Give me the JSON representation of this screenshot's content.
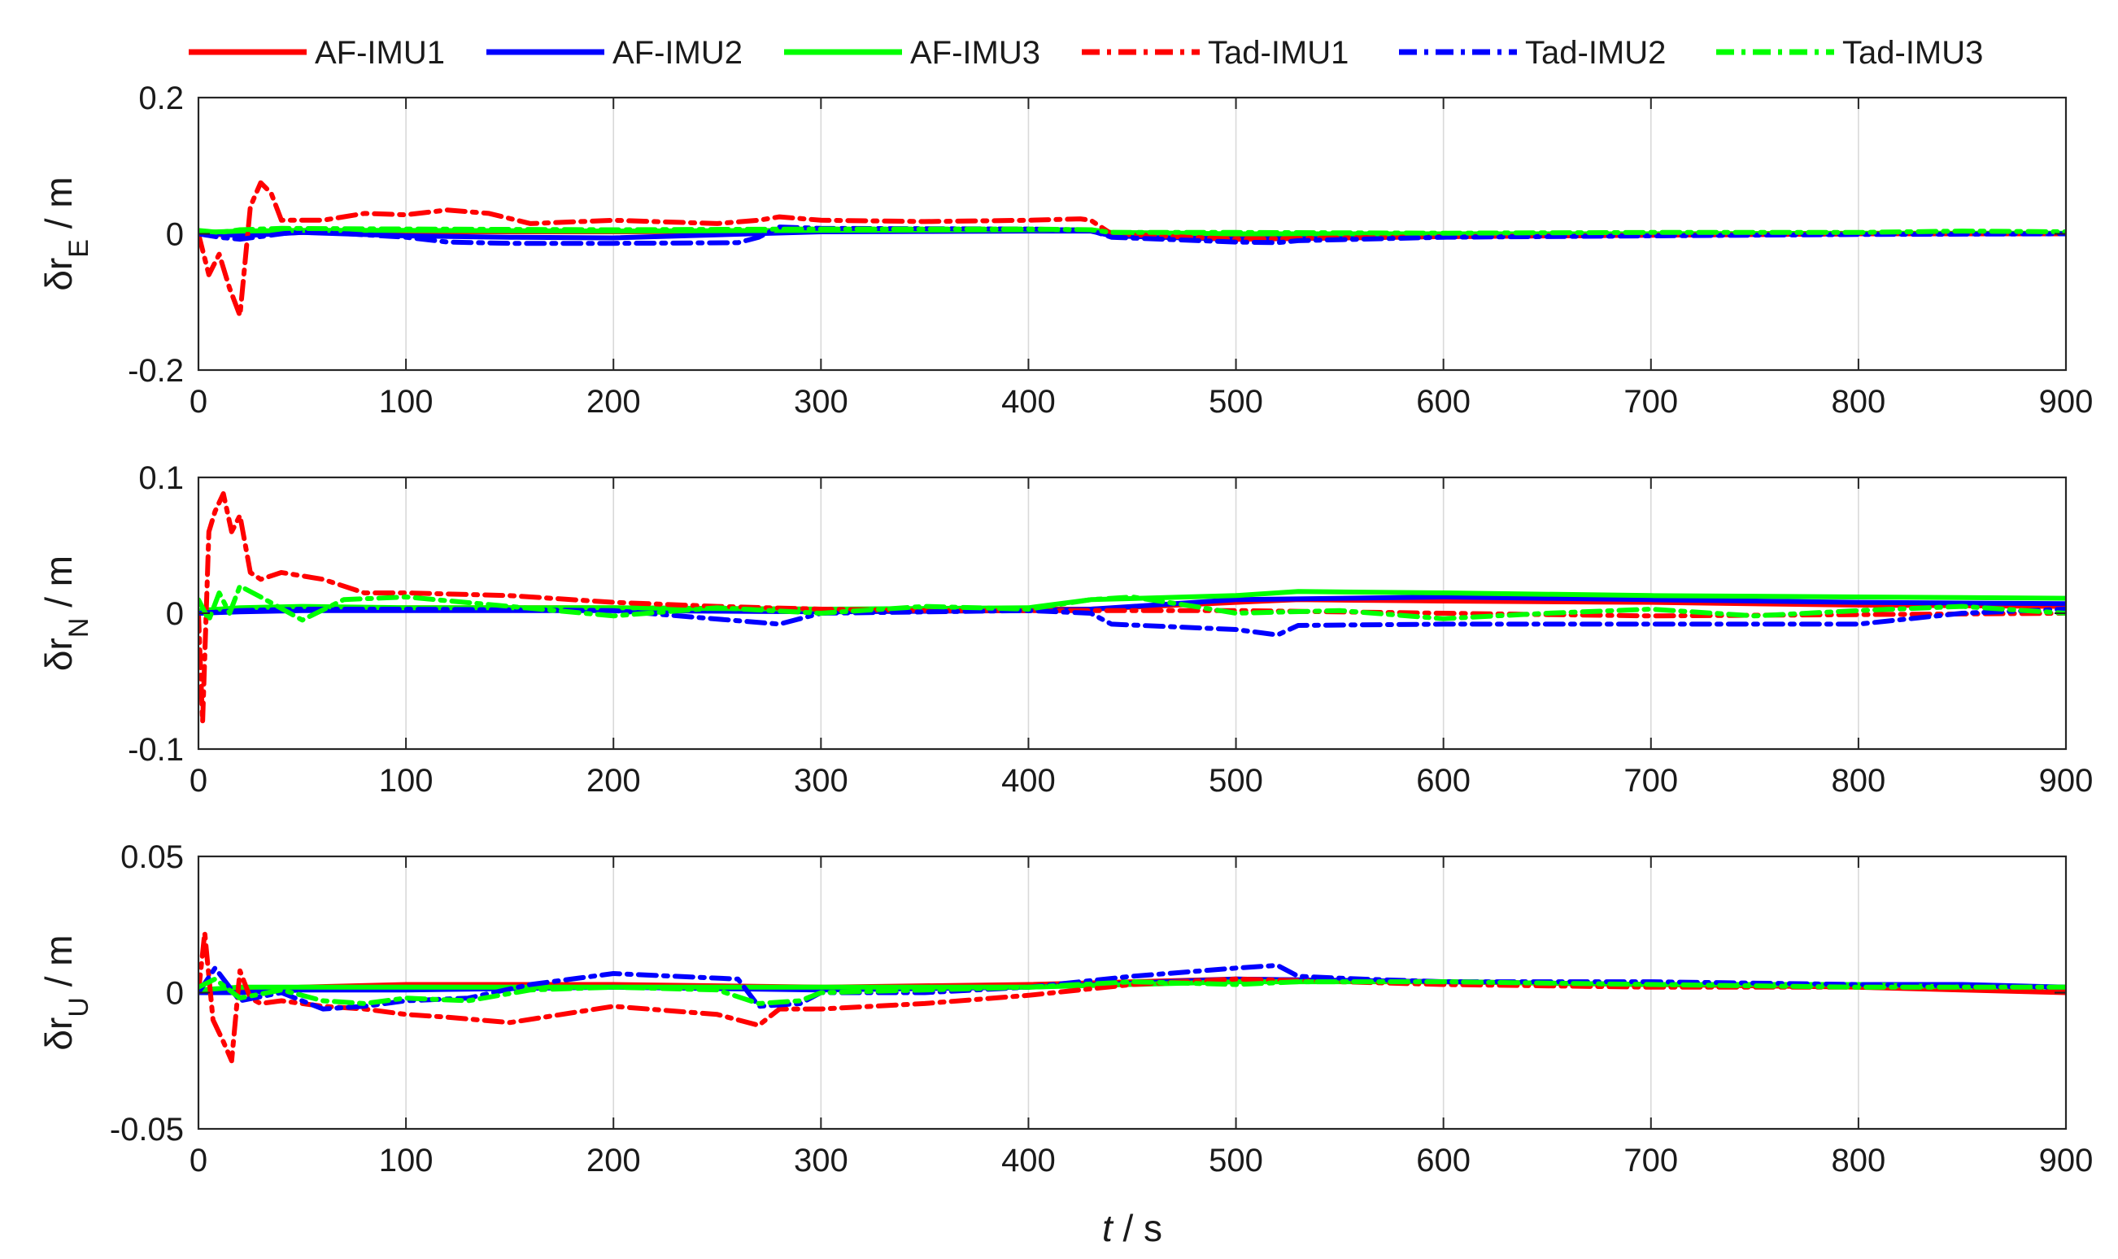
{
  "chart_data": {
    "type": "line",
    "legend": {
      "placement": "top",
      "entries": [
        {
          "label": "AF-IMU1",
          "color": "#ff0000",
          "dash": "solid"
        },
        {
          "label": "AF-IMU2",
          "color": "#0000ff",
          "dash": "solid"
        },
        {
          "label": "AF-IMU3",
          "color": "#00ff00",
          "dash": "solid"
        },
        {
          "label": "Tad-IMU1",
          "color": "#ff0000",
          "dash": "dashdot"
        },
        {
          "label": "Tad-IMU2",
          "color": "#0000ff",
          "dash": "dashdot"
        },
        {
          "label": "Tad-IMU3",
          "color": "#00ff00",
          "dash": "dashdot"
        }
      ]
    },
    "xlabel_var": "t",
    "xlabel_unit": "/ s",
    "xlim": [
      0,
      900
    ],
    "xticks": [
      "0",
      "100",
      "200",
      "300",
      "400",
      "500",
      "600",
      "700",
      "800",
      "900"
    ],
    "xtick_values": [
      0,
      100,
      200,
      300,
      400,
      500,
      600,
      700,
      800,
      900
    ],
    "grid": "vertical",
    "subplots": [
      {
        "ylabel_main": "δr",
        "ylabel_sub": "E",
        "ylabel_unit": " / m",
        "ylim": [
          -0.2,
          0.2
        ],
        "yticks": [
          "-0.2",
          "0",
          "0.2"
        ],
        "ytick_values": [
          -0.2,
          0,
          0.2
        ],
        "series": [
          {
            "name": "AF-IMU1",
            "x": [
              0,
              20,
              50,
              100,
              200,
              300,
              400,
              430,
              440,
              500,
              600,
              700,
              800,
              900
            ],
            "y": [
              0.0,
              -0.002,
              0.002,
              0.003,
              0.003,
              0.004,
              0.005,
              0.005,
              0.0,
              -0.002,
              -0.001,
              0.0,
              0.0,
              0.0
            ]
          },
          {
            "name": "AF-IMU2",
            "x": [
              0,
              20,
              50,
              100,
              150,
              200,
              300,
              400,
              430,
              440,
              500,
              600,
              700,
              800,
              900
            ],
            "y": [
              0.003,
              -0.003,
              0.002,
              -0.003,
              -0.005,
              -0.006,
              0.003,
              0.004,
              0.004,
              -0.003,
              -0.008,
              -0.004,
              -0.002,
              0.0,
              0.0
            ]
          },
          {
            "name": "AF-IMU3",
            "x": [
              0,
              20,
              50,
              100,
              200,
              300,
              400,
              430,
              440,
              500,
              600,
              700,
              800,
              900
            ],
            "y": [
              0.002,
              0.004,
              0.005,
              0.005,
              0.004,
              0.005,
              0.006,
              0.006,
              0.002,
              0.0,
              0.0,
              0.0,
              0.001,
              0.001
            ]
          },
          {
            "name": "Tad-IMU1",
            "x": [
              0,
              5,
              10,
              15,
              20,
              25,
              30,
              35,
              40,
              60,
              80,
              100,
              120,
              140,
              160,
              200,
              250,
              270,
              280,
              300,
              350,
              400,
              425,
              430,
              440,
              500,
              600,
              700,
              800,
              900
            ],
            "y": [
              0.0,
              -0.06,
              -0.03,
              -0.08,
              -0.12,
              0.04,
              0.075,
              0.06,
              0.02,
              0.02,
              0.03,
              0.028,
              0.035,
              0.03,
              0.015,
              0.02,
              0.015,
              0.02,
              0.025,
              0.02,
              0.018,
              0.02,
              0.022,
              0.02,
              0.0,
              -0.008,
              -0.004,
              -0.002,
              0.0,
              0.0
            ]
          },
          {
            "name": "Tad-IMU2",
            "x": [
              0,
              10,
              20,
              50,
              100,
              120,
              150,
              200,
              260,
              270,
              280,
              300,
              400,
              430,
              440,
              500,
              520,
              530,
              600,
              700,
              800,
              900
            ],
            "y": [
              0.0,
              -0.005,
              -0.008,
              0.004,
              -0.005,
              -0.012,
              -0.014,
              -0.014,
              -0.013,
              -0.005,
              0.01,
              0.008,
              0.007,
              0.005,
              -0.005,
              -0.012,
              -0.013,
              -0.01,
              -0.005,
              -0.003,
              -0.001,
              0.0
            ]
          },
          {
            "name": "Tad-IMU3",
            "x": [
              0,
              10,
              20,
              40,
              100,
              200,
              300,
              400,
              430,
              440,
              500,
              600,
              700,
              800,
              850,
              900
            ],
            "y": [
              0.005,
              0.002,
              0.006,
              0.008,
              0.007,
              0.006,
              0.007,
              0.007,
              0.006,
              0.002,
              0.002,
              0.001,
              0.002,
              0.002,
              0.004,
              0.003
            ]
          }
        ]
      },
      {
        "ylabel_main": "δr",
        "ylabel_sub": "N",
        "ylabel_unit": " / m",
        "ylim": [
          -0.1,
          0.1
        ],
        "yticks": [
          "-0.1",
          "0",
          "0.1"
        ],
        "ytick_values": [
          -0.1,
          0,
          0.1
        ],
        "series": [
          {
            "name": "AF-IMU1",
            "x": [
              0,
              20,
              50,
              100,
              200,
              300,
              400,
              430,
              500,
              530,
              600,
              700,
              800,
              900
            ],
            "y": [
              0.0,
              0.002,
              0.003,
              0.004,
              0.004,
              0.003,
              0.003,
              0.003,
              0.008,
              0.01,
              0.009,
              0.008,
              0.006,
              0.005
            ]
          },
          {
            "name": "AF-IMU2",
            "x": [
              0,
              20,
              50,
              100,
              200,
              300,
              400,
              430,
              500,
              600,
              700,
              800,
              900
            ],
            "y": [
              0.0,
              0.001,
              0.002,
              0.002,
              0.002,
              0.001,
              0.002,
              0.003,
              0.01,
              0.012,
              0.01,
              0.008,
              0.007
            ]
          },
          {
            "name": "AF-IMU3",
            "x": [
              0,
              20,
              50,
              100,
              200,
              300,
              400,
              430,
              500,
              530,
              600,
              700,
              800,
              900
            ],
            "y": [
              0.002,
              0.004,
              0.005,
              0.004,
              0.004,
              0.003,
              0.004,
              0.01,
              0.013,
              0.016,
              0.015,
              0.013,
              0.012,
              0.011
            ]
          },
          {
            "name": "Tad-IMU1",
            "x": [
              0,
              2,
              5,
              8,
              12,
              16,
              20,
              25,
              30,
              40,
              60,
              80,
              100,
              150,
              200,
              250,
              300,
              350,
              400,
              430,
              500,
              600,
              700,
              800,
              900
            ],
            "y": [
              0.0,
              -0.08,
              0.06,
              0.075,
              0.088,
              0.06,
              0.072,
              0.03,
              0.025,
              0.03,
              0.025,
              0.015,
              0.015,
              0.013,
              0.008,
              0.005,
              0.003,
              0.002,
              0.002,
              0.002,
              0.002,
              0.0,
              -0.002,
              -0.001,
              0.0
            ]
          },
          {
            "name": "Tad-IMU2",
            "x": [
              0,
              20,
              50,
              100,
              200,
              280,
              300,
              400,
              430,
              440,
              500,
              520,
              530,
              600,
              700,
              800,
              850,
              900
            ],
            "y": [
              0.0,
              0.002,
              0.003,
              0.003,
              0.002,
              -0.008,
              0.0,
              0.002,
              0.0,
              -0.008,
              -0.012,
              -0.016,
              -0.009,
              -0.008,
              -0.008,
              -0.008,
              0.0,
              0.003
            ]
          },
          {
            "name": "Tad-IMU3",
            "x": [
              0,
              5,
              10,
              15,
              20,
              30,
              50,
              70,
              100,
              150,
              200,
              250,
              300,
              350,
              400,
              430,
              450,
              480,
              500,
              550,
              600,
              650,
              700,
              750,
              800,
              850,
              900
            ],
            "y": [
              0.01,
              -0.005,
              0.015,
              0.0,
              0.02,
              0.012,
              -0.005,
              0.01,
              0.012,
              0.005,
              -0.002,
              0.004,
              0.0,
              0.005,
              0.003,
              0.01,
              0.012,
              0.005,
              0.0,
              0.002,
              -0.004,
              0.0,
              0.003,
              -0.002,
              0.002,
              0.005,
              0.0
            ]
          }
        ]
      },
      {
        "ylabel_main": "δr",
        "ylabel_sub": "U",
        "ylabel_unit": " / m",
        "ylim": [
          -0.05,
          0.05
        ],
        "yticks": [
          "-0.05",
          "0",
          "0.05"
        ],
        "ytick_values": [
          -0.05,
          0,
          0.05
        ],
        "series": [
          {
            "name": "AF-IMU1",
            "x": [
              0,
              20,
              50,
              100,
              200,
              300,
              400,
              500,
              600,
              700,
              800,
              850,
              900
            ],
            "y": [
              0.0,
              0.001,
              0.002,
              0.003,
              0.003,
              0.002,
              0.003,
              0.005,
              0.004,
              0.003,
              0.002,
              0.001,
              0.0
            ]
          },
          {
            "name": "AF-IMU2",
            "x": [
              0,
              20,
              50,
              100,
              200,
              300,
              400,
              500,
              600,
              700,
              800,
              850,
              900
            ],
            "y": [
              0.0,
              0.0,
              0.001,
              0.001,
              0.002,
              0.001,
              0.002,
              0.005,
              0.004,
              0.003,
              0.003,
              0.003,
              0.002
            ]
          },
          {
            "name": "AF-IMU3",
            "x": [
              0,
              20,
              50,
              100,
              200,
              300,
              400,
              500,
              600,
              700,
              800,
              850,
              900
            ],
            "y": [
              0.001,
              0.002,
              0.002,
              0.002,
              0.002,
              0.002,
              0.002,
              0.004,
              0.004,
              0.003,
              0.003,
              0.002,
              0.002
            ]
          },
          {
            "name": "Tad-IMU1",
            "x": [
              0,
              3,
              7,
              12,
              16,
              20,
              25,
              30,
              40,
              60,
              80,
              100,
              120,
              150,
              200,
              250,
              270,
              280,
              300,
              350,
              400,
              450,
              500,
              550,
              600,
              700,
              800,
              900
            ],
            "y": [
              0.0,
              0.022,
              -0.01,
              -0.018,
              -0.025,
              0.008,
              -0.002,
              -0.004,
              -0.003,
              -0.005,
              -0.006,
              -0.008,
              -0.009,
              -0.011,
              -0.005,
              -0.008,
              -0.012,
              -0.006,
              -0.006,
              -0.004,
              -0.001,
              0.003,
              0.005,
              0.004,
              0.003,
              0.002,
              0.002,
              0.001
            ]
          },
          {
            "name": "Tad-IMU2",
            "x": [
              0,
              8,
              20,
              40,
              60,
              80,
              100,
              130,
              160,
              200,
              230,
              260,
              270,
              290,
              300,
              350,
              400,
              450,
              500,
              520,
              530,
              560,
              600,
              700,
              800,
              900
            ],
            "y": [
              0.0,
              0.009,
              -0.003,
              0.0,
              -0.006,
              -0.005,
              -0.003,
              -0.002,
              0.003,
              0.007,
              0.006,
              0.005,
              -0.005,
              -0.004,
              0.0,
              0.0,
              0.002,
              0.006,
              0.009,
              0.01,
              0.006,
              0.005,
              0.004,
              0.004,
              0.003,
              0.002
            ]
          },
          {
            "name": "Tad-IMU3",
            "x": [
              0,
              8,
              20,
              40,
              60,
              80,
              100,
              130,
              160,
              200,
              250,
              270,
              290,
              300,
              350,
              400,
              450,
              500,
              530,
              560,
              600,
              700,
              800,
              900
            ],
            "y": [
              0.002,
              0.005,
              -0.002,
              0.001,
              -0.003,
              -0.004,
              -0.002,
              -0.003,
              0.001,
              0.002,
              0.001,
              -0.004,
              -0.003,
              0.0,
              0.001,
              0.002,
              0.004,
              0.003,
              0.004,
              0.004,
              0.004,
              0.003,
              0.002,
              0.002
            ]
          }
        ]
      }
    ]
  }
}
